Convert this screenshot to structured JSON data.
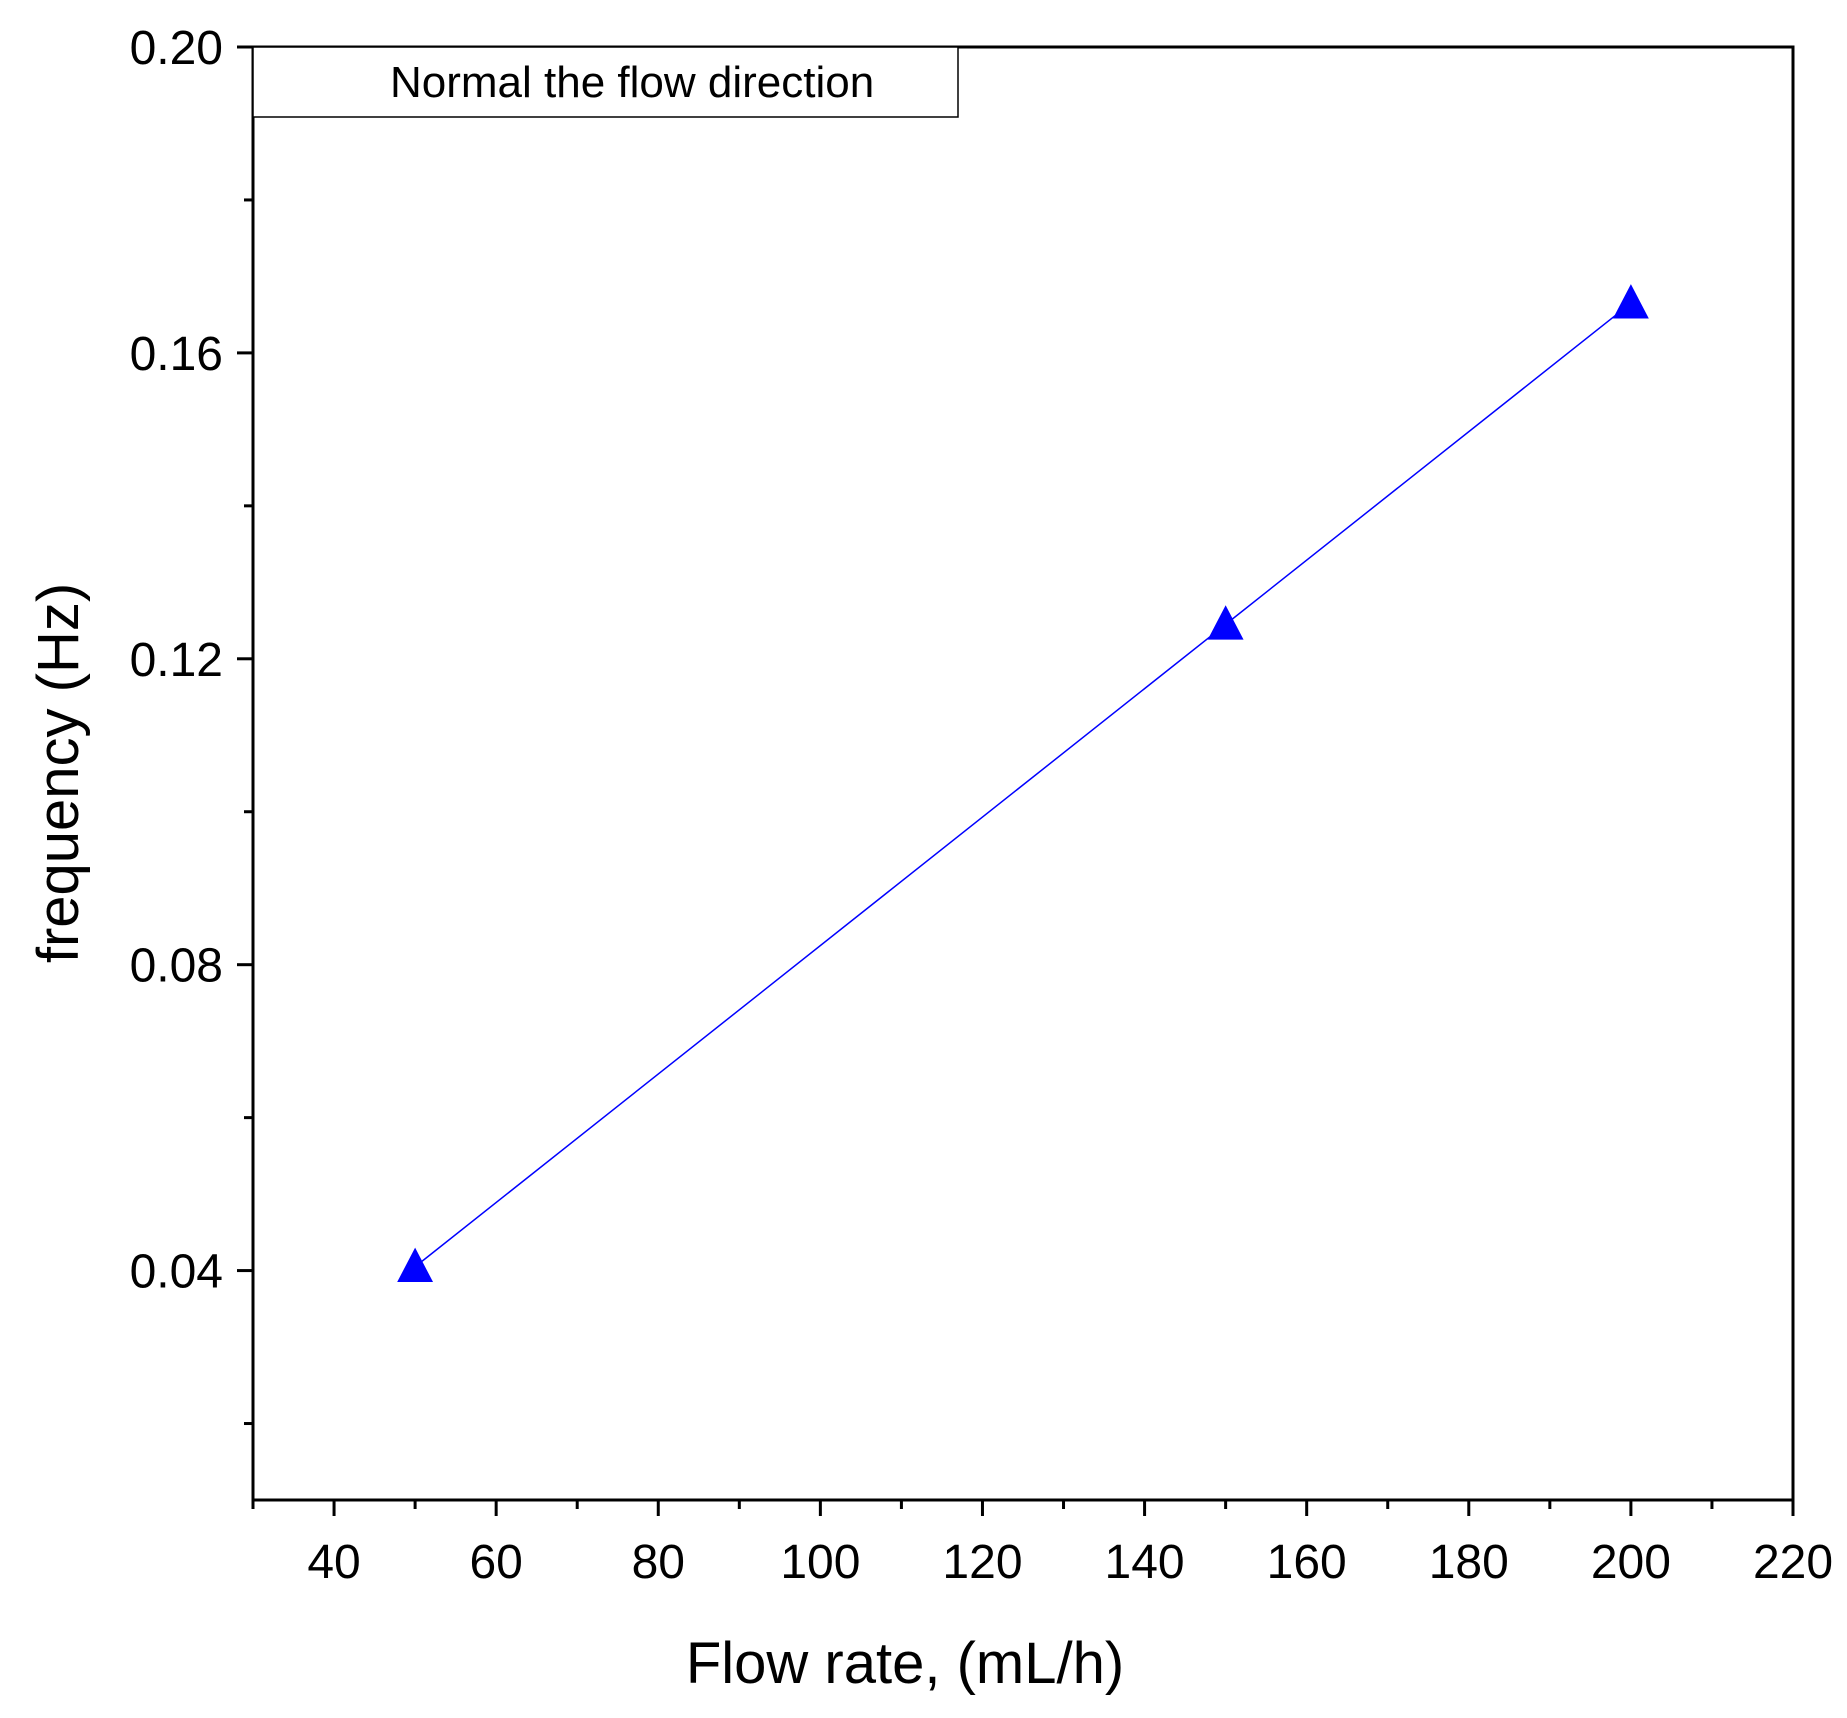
{
  "chart_data": {
    "type": "line",
    "title": "",
    "xlabel": "Flow rate, (mL/h)",
    "ylabel": "frequency (Hz)",
    "xlim": [
      30,
      220
    ],
    "ylim": [
      0.01,
      0.2
    ],
    "x_ticks": [
      40,
      60,
      80,
      100,
      120,
      140,
      160,
      180,
      200,
      220
    ],
    "x_tick_labels": [
      "40",
      "60",
      "80",
      "100",
      "120",
      "140",
      "160",
      "180",
      "200",
      "220"
    ],
    "x_minor_ticks": [
      30,
      50,
      70,
      90,
      110,
      130,
      150,
      170,
      190,
      210
    ],
    "y_ticks": [
      0.04,
      0.08,
      0.12,
      0.16,
      0.2
    ],
    "y_tick_labels": [
      "0.04",
      "0.08",
      "0.12",
      "0.16",
      "0.20"
    ],
    "y_minor_ticks": [
      0.02,
      0.06,
      0.1,
      0.14,
      0.18
    ],
    "grid": false,
    "legend": {
      "position": "top-left",
      "entries": [
        "Normal the flow direction"
      ]
    },
    "series": [
      {
        "name": "Normal the flow direction",
        "marker": "triangle",
        "color": "#0000ff",
        "x": [
          50,
          150,
          200
        ],
        "y": [
          0.0405,
          0.1245,
          0.1665
        ]
      }
    ]
  }
}
